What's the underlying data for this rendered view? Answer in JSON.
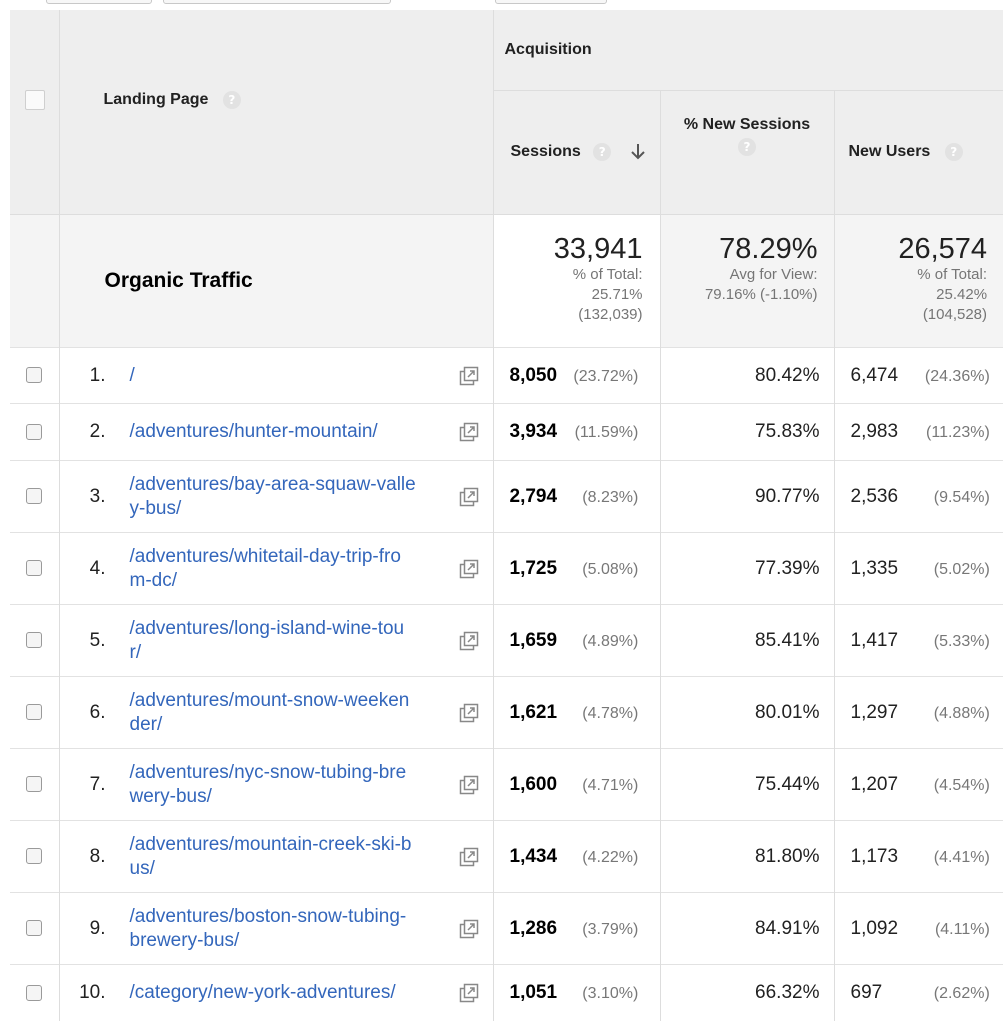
{
  "header": {
    "acquisition": "Acquisition",
    "landing_page": "Landing Page",
    "sessions": "Sessions",
    "new_sessions_pct": "% New Sessions",
    "new_users": "New Users",
    "help_glyph": "?"
  },
  "totals": {
    "label": "Organic Traffic",
    "sessions": {
      "value": "33,941",
      "line1": "% of Total:",
      "line2": "25.71%",
      "line3": "(132,039)"
    },
    "new_sessions": {
      "value": "78.29%",
      "line1": "Avg for View:",
      "line2": "79.16% (-1.10%)"
    },
    "new_users": {
      "value": "26,574",
      "line1": "% of Total:",
      "line2": "25.42%",
      "line3": "(104,528)"
    }
  },
  "rows": [
    {
      "idx": "1.",
      "page": [
        "/"
      ],
      "sessions": "8,050",
      "sessions_pct": "(23.72%)",
      "new_sessions": "80.42%",
      "new_users": "6,474",
      "new_users_pct": "(24.36%)"
    },
    {
      "idx": "2.",
      "page": [
        "/adventures/hunter-mountain/"
      ],
      "sessions": "3,934",
      "sessions_pct": "(11.59%)",
      "new_sessions": "75.83%",
      "new_users": "2,983",
      "new_users_pct": "(11.23%)"
    },
    {
      "idx": "3.",
      "page": [
        "/adventures/bay-area-squaw-valle",
        "y-bus/"
      ],
      "sessions": "2,794",
      "sessions_pct": "(8.23%)",
      "new_sessions": "90.77%",
      "new_users": "2,536",
      "new_users_pct": "(9.54%)"
    },
    {
      "idx": "4.",
      "page": [
        "/adventures/whitetail-day-trip-fro",
        "m-dc/"
      ],
      "sessions": "1,725",
      "sessions_pct": "(5.08%)",
      "new_sessions": "77.39%",
      "new_users": "1,335",
      "new_users_pct": "(5.02%)"
    },
    {
      "idx": "5.",
      "page": [
        "/adventures/long-island-wine-tou",
        "r/"
      ],
      "sessions": "1,659",
      "sessions_pct": "(4.89%)",
      "new_sessions": "85.41%",
      "new_users": "1,417",
      "new_users_pct": "(5.33%)"
    },
    {
      "idx": "6.",
      "page": [
        "/adventures/mount-snow-weeken",
        "der/"
      ],
      "sessions": "1,621",
      "sessions_pct": "(4.78%)",
      "new_sessions": "80.01%",
      "new_users": "1,297",
      "new_users_pct": "(4.88%)"
    },
    {
      "idx": "7.",
      "page": [
        "/adventures/nyc-snow-tubing-bre",
        "wery-bus/"
      ],
      "sessions": "1,600",
      "sessions_pct": "(4.71%)",
      "new_sessions": "75.44%",
      "new_users": "1,207",
      "new_users_pct": "(4.54%)"
    },
    {
      "idx": "8.",
      "page": [
        "/adventures/mountain-creek-ski-b",
        "us/"
      ],
      "sessions": "1,434",
      "sessions_pct": "(4.22%)",
      "new_sessions": "81.80%",
      "new_users": "1,173",
      "new_users_pct": "(4.41%)"
    },
    {
      "idx": "9.",
      "page": [
        "/adventures/boston-snow-tubing-",
        "brewery-bus/"
      ],
      "sessions": "1,286",
      "sessions_pct": "(3.79%)",
      "new_sessions": "84.91%",
      "new_users": "1,092",
      "new_users_pct": "(4.11%)"
    },
    {
      "idx": "10.",
      "page": [
        "/category/new-york-adventures/"
      ],
      "sessions": "1,051",
      "sessions_pct": "(3.10%)",
      "new_sessions": "66.32%",
      "new_users": "697",
      "new_users_pct": "(2.62%)"
    }
  ],
  "icons": {
    "help": "question-circle-icon",
    "sort": "arrow-down-icon",
    "external": "open-in-new-icon"
  },
  "colors": {
    "link": "#3366bb",
    "header_bg": "#eeeeee",
    "muted": "#777777"
  }
}
